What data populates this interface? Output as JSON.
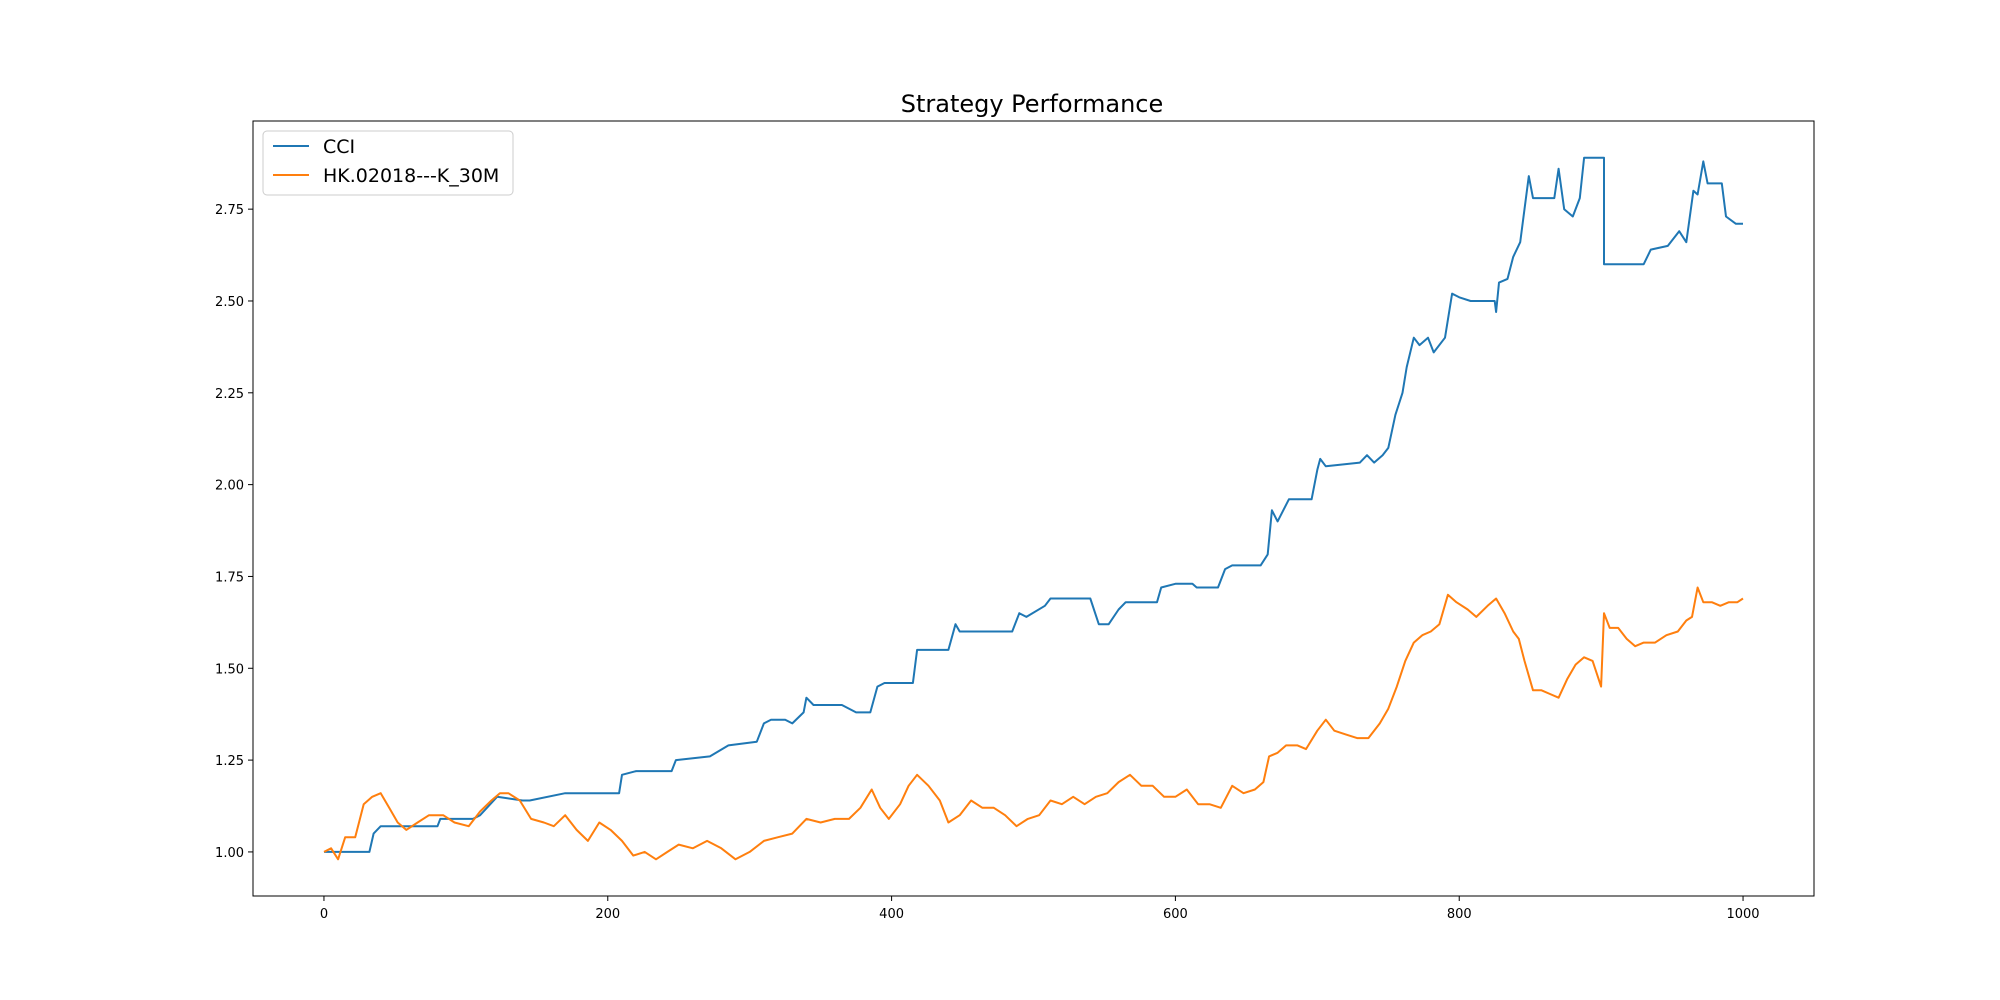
{
  "chart_data": {
    "type": "line",
    "title": "Strategy Performance",
    "xlabel": "",
    "ylabel": "",
    "xlim": [
      -50,
      1050
    ],
    "ylim": [
      0.88,
      2.99
    ],
    "x_ticks": [
      0,
      200,
      400,
      600,
      800,
      1000
    ],
    "y_ticks": [
      1.0,
      1.25,
      1.5,
      1.75,
      2.0,
      2.25,
      2.5,
      2.75
    ],
    "x_tick_labels": [
      "0",
      "200",
      "400",
      "600",
      "800",
      "1000"
    ],
    "y_tick_labels": [
      "1.00",
      "1.25",
      "1.50",
      "1.75",
      "2.00",
      "2.25",
      "2.50",
      "2.75"
    ],
    "grid": false,
    "legend_position": "upper-left",
    "series": [
      {
        "name": "CCI",
        "color": "#1f77b4",
        "points": [
          [
            0,
            1.0
          ],
          [
            32,
            1.0
          ],
          [
            35,
            1.05
          ],
          [
            40,
            1.07
          ],
          [
            80,
            1.07
          ],
          [
            82,
            1.09
          ],
          [
            105,
            1.09
          ],
          [
            110,
            1.1
          ],
          [
            122,
            1.15
          ],
          [
            140,
            1.14
          ],
          [
            145,
            1.14
          ],
          [
            170,
            1.16
          ],
          [
            208,
            1.16
          ],
          [
            210,
            1.21
          ],
          [
            220,
            1.22
          ],
          [
            245,
            1.22
          ],
          [
            248,
            1.25
          ],
          [
            272,
            1.26
          ],
          [
            285,
            1.29
          ],
          [
            305,
            1.3
          ],
          [
            310,
            1.35
          ],
          [
            315,
            1.36
          ],
          [
            325,
            1.36
          ],
          [
            330,
            1.35
          ],
          [
            338,
            1.38
          ],
          [
            340,
            1.42
          ],
          [
            345,
            1.4
          ],
          [
            365,
            1.4
          ],
          [
            375,
            1.38
          ],
          [
            385,
            1.38
          ],
          [
            390,
            1.45
          ],
          [
            395,
            1.46
          ],
          [
            415,
            1.46
          ],
          [
            418,
            1.55
          ],
          [
            425,
            1.55
          ],
          [
            440,
            1.55
          ],
          [
            445,
            1.62
          ],
          [
            448,
            1.6
          ],
          [
            485,
            1.6
          ],
          [
            490,
            1.65
          ],
          [
            495,
            1.64
          ],
          [
            508,
            1.67
          ],
          [
            512,
            1.69
          ],
          [
            540,
            1.69
          ],
          [
            546,
            1.62
          ],
          [
            553,
            1.62
          ],
          [
            560,
            1.66
          ],
          [
            565,
            1.68
          ],
          [
            587,
            1.68
          ],
          [
            590,
            1.72
          ],
          [
            600,
            1.73
          ],
          [
            612,
            1.73
          ],
          [
            615,
            1.72
          ],
          [
            630,
            1.72
          ],
          [
            635,
            1.77
          ],
          [
            640,
            1.78
          ],
          [
            660,
            1.78
          ],
          [
            665,
            1.81
          ],
          [
            668,
            1.93
          ],
          [
            672,
            1.9
          ],
          [
            680,
            1.96
          ],
          [
            696,
            1.96
          ],
          [
            700,
            2.04
          ],
          [
            702,
            2.07
          ],
          [
            706,
            2.05
          ],
          [
            730,
            2.06
          ],
          [
            735,
            2.08
          ],
          [
            740,
            2.06
          ],
          [
            746,
            2.08
          ],
          [
            750,
            2.1
          ],
          [
            755,
            2.19
          ],
          [
            760,
            2.25
          ],
          [
            763,
            2.32
          ],
          [
            768,
            2.4
          ],
          [
            772,
            2.38
          ],
          [
            778,
            2.4
          ],
          [
            782,
            2.36
          ],
          [
            790,
            2.4
          ],
          [
            795,
            2.52
          ],
          [
            800,
            2.51
          ],
          [
            808,
            2.5
          ],
          [
            825,
            2.5
          ],
          [
            826,
            2.47
          ],
          [
            828,
            2.55
          ],
          [
            834,
            2.56
          ],
          [
            838,
            2.62
          ],
          [
            843,
            2.66
          ],
          [
            849,
            2.84
          ],
          [
            852,
            2.78
          ],
          [
            867,
            2.78
          ],
          [
            870,
            2.86
          ],
          [
            874,
            2.75
          ],
          [
            880,
            2.73
          ],
          [
            885,
            2.78
          ],
          [
            888,
            2.89
          ],
          [
            902,
            2.89
          ],
          [
            902,
            2.6
          ],
          [
            930,
            2.6
          ],
          [
            935,
            2.64
          ],
          [
            947,
            2.65
          ],
          [
            955,
            2.69
          ],
          [
            960,
            2.66
          ],
          [
            965,
            2.8
          ],
          [
            968,
            2.79
          ],
          [
            972,
            2.88
          ],
          [
            975,
            2.82
          ],
          [
            985,
            2.82
          ],
          [
            988,
            2.73
          ],
          [
            995,
            2.71
          ],
          [
            1000,
            2.71
          ]
        ]
      },
      {
        "name": "HK.02018---K_30M",
        "color": "#ff7f0e",
        "points": [
          [
            0,
            1.0
          ],
          [
            5,
            1.01
          ],
          [
            10,
            0.98
          ],
          [
            15,
            1.04
          ],
          [
            22,
            1.04
          ],
          [
            28,
            1.13
          ],
          [
            34,
            1.15
          ],
          [
            40,
            1.16
          ],
          [
            46,
            1.12
          ],
          [
            52,
            1.08
          ],
          [
            58,
            1.06
          ],
          [
            66,
            1.08
          ],
          [
            74,
            1.1
          ],
          [
            84,
            1.1
          ],
          [
            92,
            1.08
          ],
          [
            102,
            1.07
          ],
          [
            110,
            1.11
          ],
          [
            118,
            1.14
          ],
          [
            124,
            1.16
          ],
          [
            130,
            1.16
          ],
          [
            138,
            1.14
          ],
          [
            146,
            1.09
          ],
          [
            155,
            1.08
          ],
          [
            162,
            1.07
          ],
          [
            170,
            1.1
          ],
          [
            178,
            1.06
          ],
          [
            186,
            1.03
          ],
          [
            194,
            1.08
          ],
          [
            202,
            1.06
          ],
          [
            210,
            1.03
          ],
          [
            218,
            0.99
          ],
          [
            226,
            1.0
          ],
          [
            234,
            0.98
          ],
          [
            242,
            1.0
          ],
          [
            250,
            1.02
          ],
          [
            260,
            1.01
          ],
          [
            270,
            1.03
          ],
          [
            280,
            1.01
          ],
          [
            290,
            0.98
          ],
          [
            300,
            1.0
          ],
          [
            310,
            1.03
          ],
          [
            320,
            1.04
          ],
          [
            330,
            1.05
          ],
          [
            340,
            1.09
          ],
          [
            350,
            1.08
          ],
          [
            360,
            1.09
          ],
          [
            370,
            1.09
          ],
          [
            378,
            1.12
          ],
          [
            386,
            1.17
          ],
          [
            392,
            1.12
          ],
          [
            398,
            1.09
          ],
          [
            406,
            1.13
          ],
          [
            412,
            1.18
          ],
          [
            418,
            1.21
          ],
          [
            426,
            1.18
          ],
          [
            434,
            1.14
          ],
          [
            440,
            1.08
          ],
          [
            448,
            1.1
          ],
          [
            456,
            1.14
          ],
          [
            464,
            1.12
          ],
          [
            472,
            1.12
          ],
          [
            480,
            1.1
          ],
          [
            488,
            1.07
          ],
          [
            496,
            1.09
          ],
          [
            504,
            1.1
          ],
          [
            512,
            1.14
          ],
          [
            520,
            1.13
          ],
          [
            528,
            1.15
          ],
          [
            536,
            1.13
          ],
          [
            544,
            1.15
          ],
          [
            552,
            1.16
          ],
          [
            560,
            1.19
          ],
          [
            568,
            1.21
          ],
          [
            576,
            1.18
          ],
          [
            584,
            1.18
          ],
          [
            592,
            1.15
          ],
          [
            600,
            1.15
          ],
          [
            608,
            1.17
          ],
          [
            616,
            1.13
          ],
          [
            624,
            1.13
          ],
          [
            632,
            1.12
          ],
          [
            640,
            1.18
          ],
          [
            648,
            1.16
          ],
          [
            656,
            1.17
          ],
          [
            662,
            1.19
          ],
          [
            666,
            1.26
          ],
          [
            672,
            1.27
          ],
          [
            678,
            1.29
          ],
          [
            686,
            1.29
          ],
          [
            692,
            1.28
          ],
          [
            700,
            1.33
          ],
          [
            706,
            1.36
          ],
          [
            712,
            1.33
          ],
          [
            720,
            1.32
          ],
          [
            728,
            1.31
          ],
          [
            736,
            1.31
          ],
          [
            744,
            1.35
          ],
          [
            750,
            1.39
          ],
          [
            756,
            1.45
          ],
          [
            762,
            1.52
          ],
          [
            768,
            1.57
          ],
          [
            774,
            1.59
          ],
          [
            780,
            1.6
          ],
          [
            786,
            1.62
          ],
          [
            792,
            1.7
          ],
          [
            798,
            1.68
          ],
          [
            806,
            1.66
          ],
          [
            812,
            1.64
          ],
          [
            820,
            1.67
          ],
          [
            826,
            1.69
          ],
          [
            832,
            1.65
          ],
          [
            838,
            1.6
          ],
          [
            842,
            1.58
          ],
          [
            846,
            1.52
          ],
          [
            852,
            1.44
          ],
          [
            858,
            1.44
          ],
          [
            864,
            1.43
          ],
          [
            870,
            1.42
          ],
          [
            876,
            1.47
          ],
          [
            882,
            1.51
          ],
          [
            888,
            1.53
          ],
          [
            894,
            1.52
          ],
          [
            900,
            1.45
          ],
          [
            902,
            1.65
          ],
          [
            906,
            1.61
          ],
          [
            912,
            1.61
          ],
          [
            918,
            1.58
          ],
          [
            924,
            1.56
          ],
          [
            930,
            1.57
          ],
          [
            938,
            1.57
          ],
          [
            946,
            1.59
          ],
          [
            954,
            1.6
          ],
          [
            960,
            1.63
          ],
          [
            964,
            1.64
          ],
          [
            968,
            1.72
          ],
          [
            972,
            1.68
          ],
          [
            978,
            1.68
          ],
          [
            984,
            1.67
          ],
          [
            990,
            1.68
          ],
          [
            996,
            1.68
          ],
          [
            1000,
            1.69
          ]
        ]
      }
    ]
  }
}
